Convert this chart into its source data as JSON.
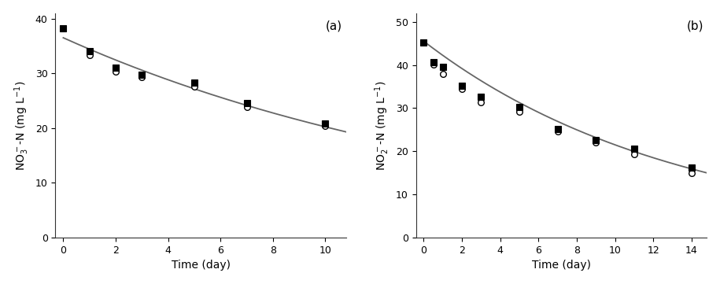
{
  "panel_a": {
    "label": "(a)",
    "xlabel": "Time (day)",
    "ylabel": "NO$_3^-$-N (mg L$^{-1}$)",
    "xlim": [
      -0.3,
      10.8
    ],
    "ylim": [
      0,
      41
    ],
    "xticks": [
      0,
      2,
      4,
      6,
      8,
      10
    ],
    "yticks": [
      0,
      10,
      20,
      30,
      40
    ],
    "data_squares": [
      [
        0,
        38.2
      ],
      [
        1,
        34.1
      ],
      [
        2,
        31.1
      ],
      [
        3,
        29.8
      ],
      [
        5,
        28.3
      ],
      [
        7,
        24.6
      ],
      [
        10,
        20.9
      ]
    ],
    "data_circles": [
      [
        1,
        33.4
      ],
      [
        2,
        30.3
      ],
      [
        3,
        29.3
      ],
      [
        5,
        27.6
      ],
      [
        7,
        23.9
      ],
      [
        10,
        20.4
      ]
    ],
    "fit_C0": 36.5,
    "fit_k": 0.059
  },
  "panel_b": {
    "label": "(b)",
    "xlabel": "Time (day)",
    "ylabel": "NO$_2^-$-N (mg L$^{-1}$)",
    "xlim": [
      -0.4,
      14.8
    ],
    "ylim": [
      0,
      52
    ],
    "xticks": [
      0,
      2,
      4,
      6,
      8,
      10,
      12,
      14
    ],
    "yticks": [
      0,
      10,
      20,
      30,
      40,
      50
    ],
    "data_squares": [
      [
        0,
        45.2
      ],
      [
        0.5,
        40.6
      ],
      [
        1,
        39.6
      ],
      [
        2,
        35.2
      ],
      [
        3,
        32.6
      ],
      [
        5,
        30.2
      ],
      [
        7,
        25.1
      ],
      [
        9,
        22.6
      ],
      [
        11,
        20.6
      ],
      [
        14,
        16.2
      ]
    ],
    "data_circles": [
      [
        0.5,
        40.1
      ],
      [
        1,
        38.0
      ],
      [
        2,
        34.4
      ],
      [
        3,
        31.4
      ],
      [
        5,
        29.1
      ],
      [
        7,
        24.6
      ],
      [
        9,
        22.1
      ],
      [
        11,
        19.4
      ],
      [
        14,
        15.0
      ]
    ],
    "fit_C0": 45.5,
    "fit_k": 0.075
  },
  "line_color": "#666666",
  "square_color": "#000000",
  "circle_facecolor": "white",
  "circle_edgecolor": "#000000",
  "square_size": 5.5,
  "circle_size": 5.5,
  "line_width": 1.3,
  "label_fontsize": 10,
  "tick_fontsize": 9,
  "panel_label_fontsize": 11
}
